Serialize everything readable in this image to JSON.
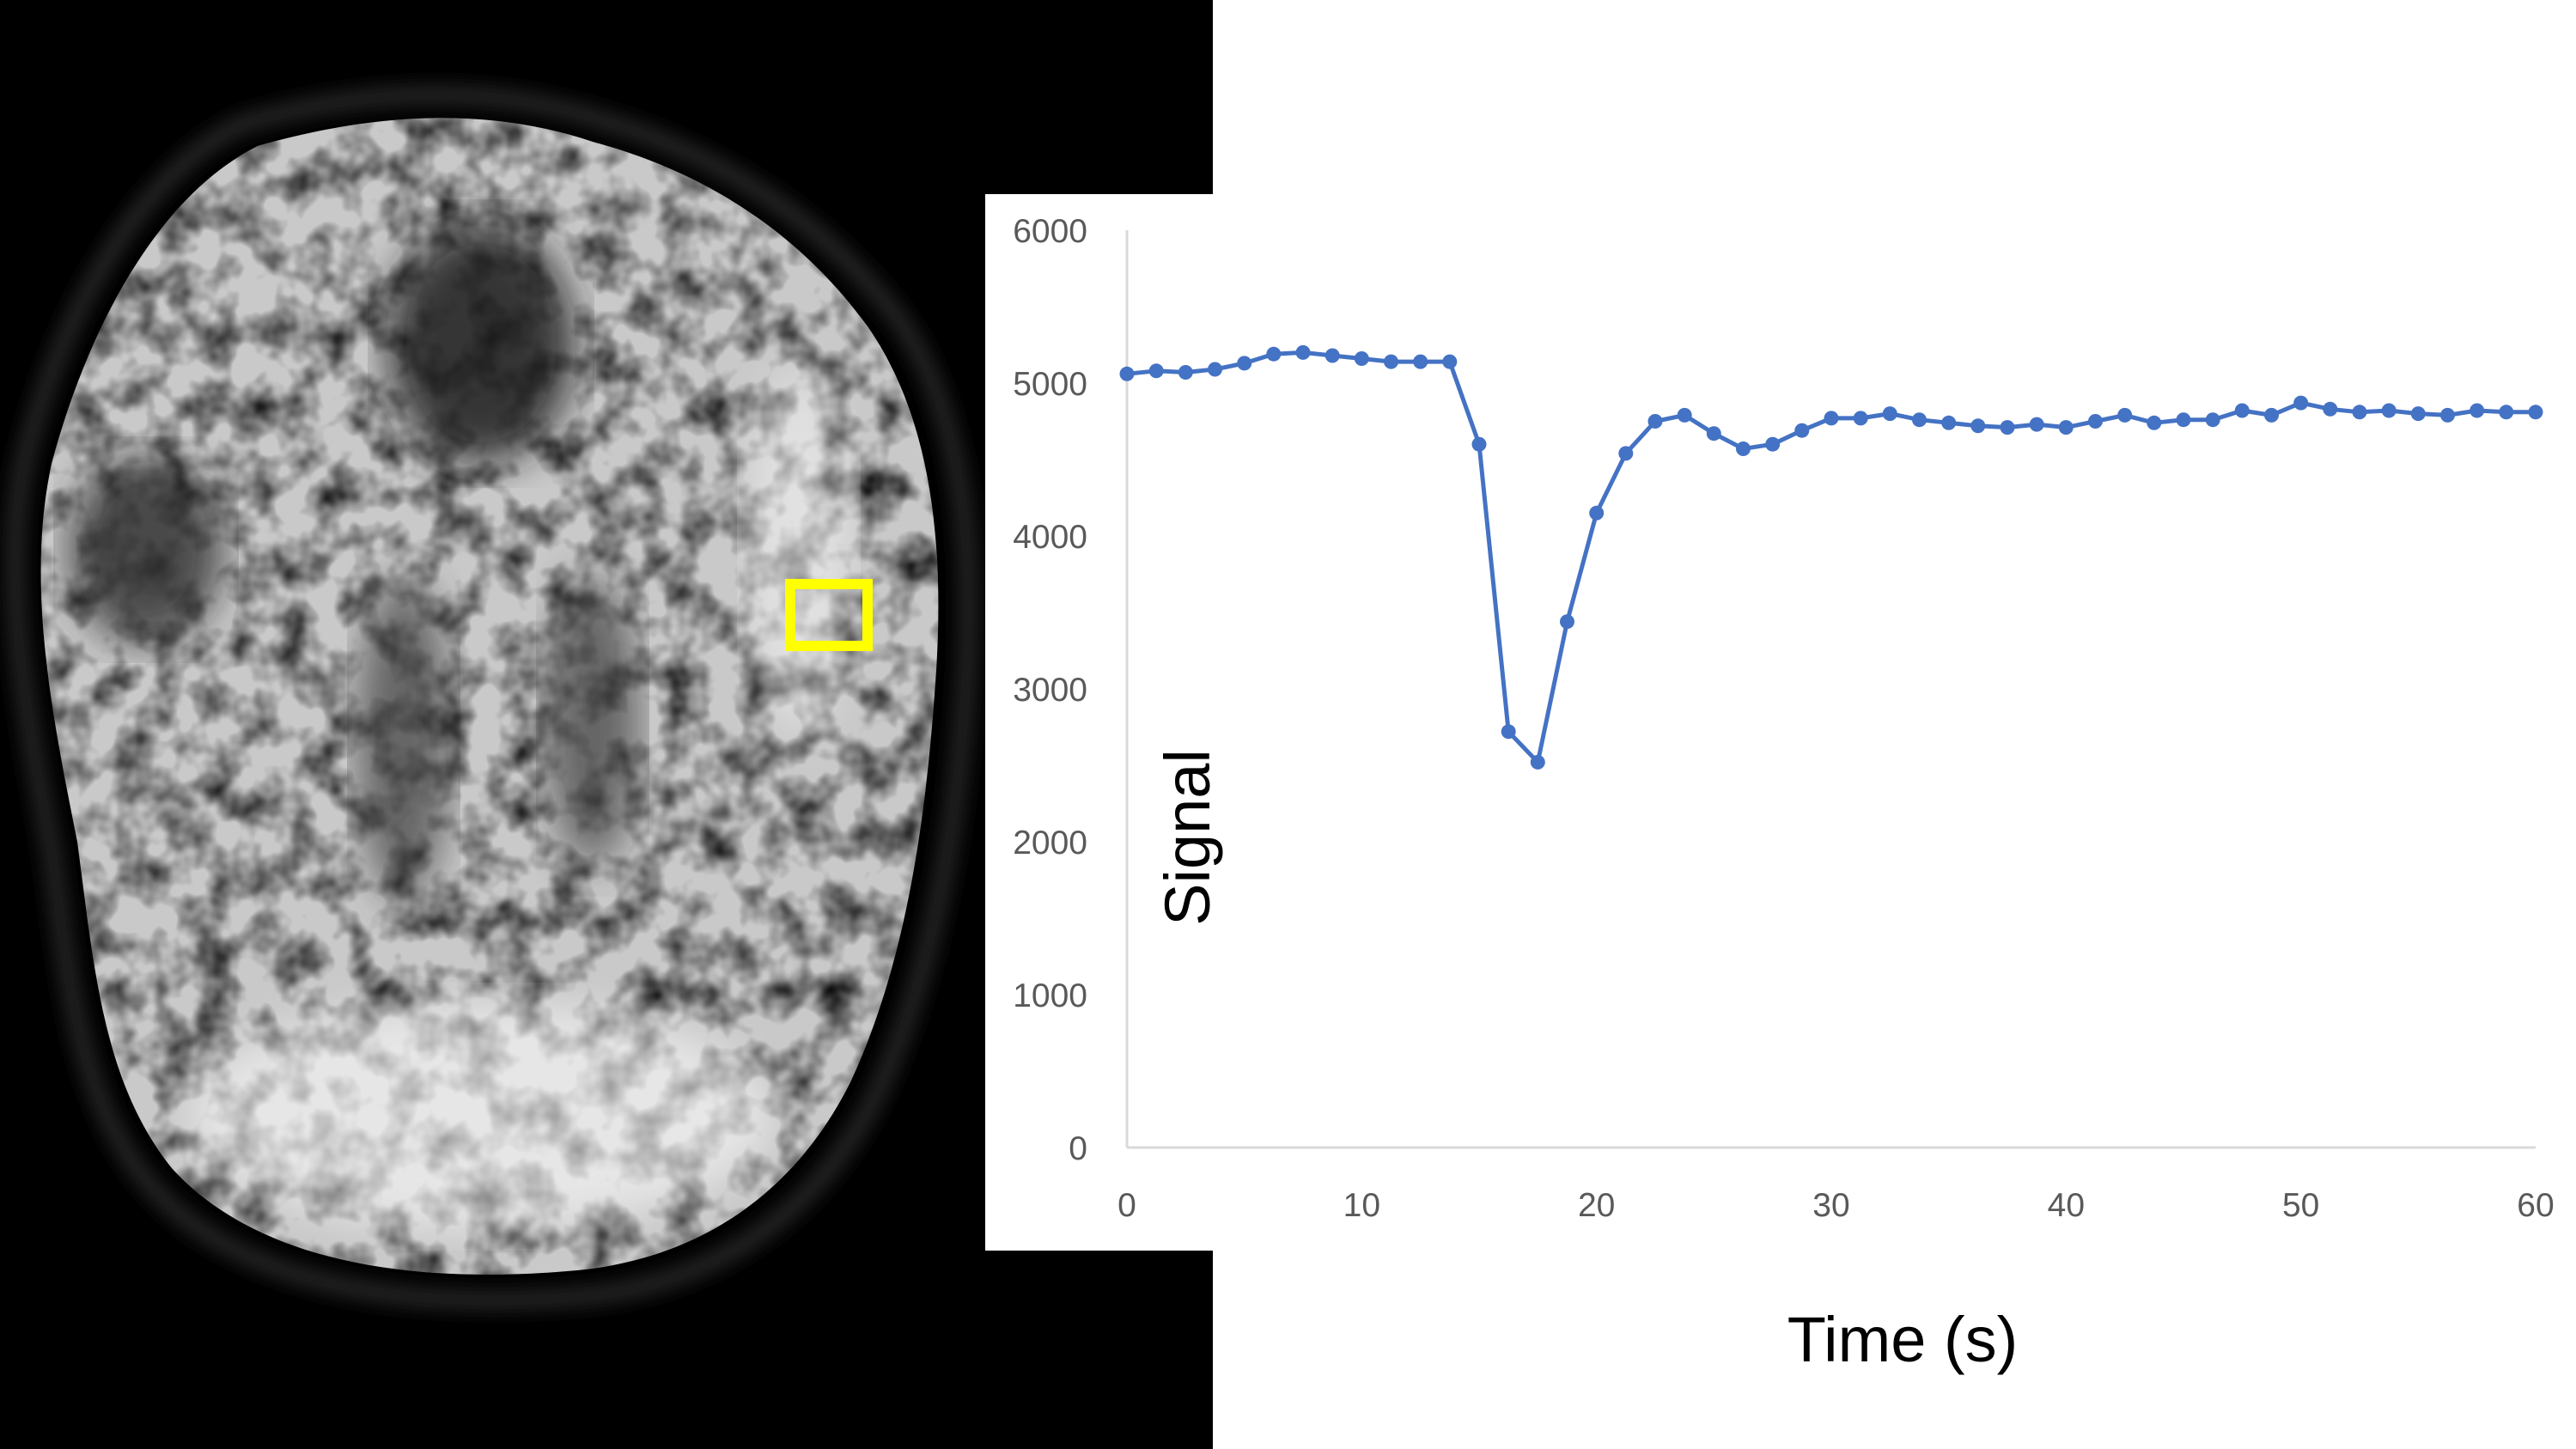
{
  "colors": {
    "series": "#4472c4",
    "roi_box": "#ffff00",
    "mri_background": "#000000",
    "axis_line": "#d9d9d9",
    "tick_label": "#595959"
  },
  "image": {
    "description_icon": "brain-mri-slice",
    "roi_marker_icon": "yellow-square-roi"
  },
  "chart_data": {
    "type": "line",
    "xlabel": "Time (s)",
    "ylabel": "Signal",
    "xlim": [
      0,
      60
    ],
    "ylim": [
      0,
      6000
    ],
    "x_ticks": [
      0,
      10,
      20,
      30,
      40,
      50,
      60
    ],
    "y_ticks": [
      0,
      1000,
      2000,
      3000,
      4000,
      5000,
      6000
    ],
    "x_tick_labels": [
      "0",
      "10",
      "20",
      "30",
      "40",
      "50",
      "60"
    ],
    "y_tick_labels": [
      "0",
      "1000",
      "2000",
      "3000",
      "4000",
      "5000",
      "6000"
    ],
    "grid": false,
    "legend": "none",
    "marker": "circle",
    "series": [
      {
        "x": [
          0,
          1.25,
          2.5,
          3.75,
          5,
          6.25,
          7.5,
          8.75,
          10,
          11.25,
          12.5,
          13.75,
          15,
          16.25,
          17.5,
          18.75,
          20,
          21.25,
          22.5,
          23.75,
          25,
          26.25,
          27.5,
          28.75,
          30,
          31.25,
          32.5,
          33.75,
          35,
          36.25,
          37.5,
          38.75,
          40,
          41.25,
          42.5,
          43.75,
          45,
          46.25,
          47.5,
          48.75,
          50,
          51.25,
          52.5,
          53.75,
          55,
          56.25,
          57.5,
          58.75,
          60
        ],
        "y": [
          5060,
          5080,
          5070,
          5090,
          5130,
          5190,
          5200,
          5180,
          5160,
          5140,
          5140,
          5140,
          4600,
          2720,
          2520,
          3440,
          4150,
          4540,
          4750,
          4790,
          4670,
          4570,
          4600,
          4690,
          4770,
          4770,
          4800,
          4760,
          4740,
          4720,
          4710,
          4730,
          4710,
          4750,
          4790,
          4740,
          4760,
          4760,
          4820,
          4790,
          4870,
          4830,
          4810,
          4820,
          4800,
          4790,
          4820,
          4810,
          4810
        ]
      }
    ]
  }
}
